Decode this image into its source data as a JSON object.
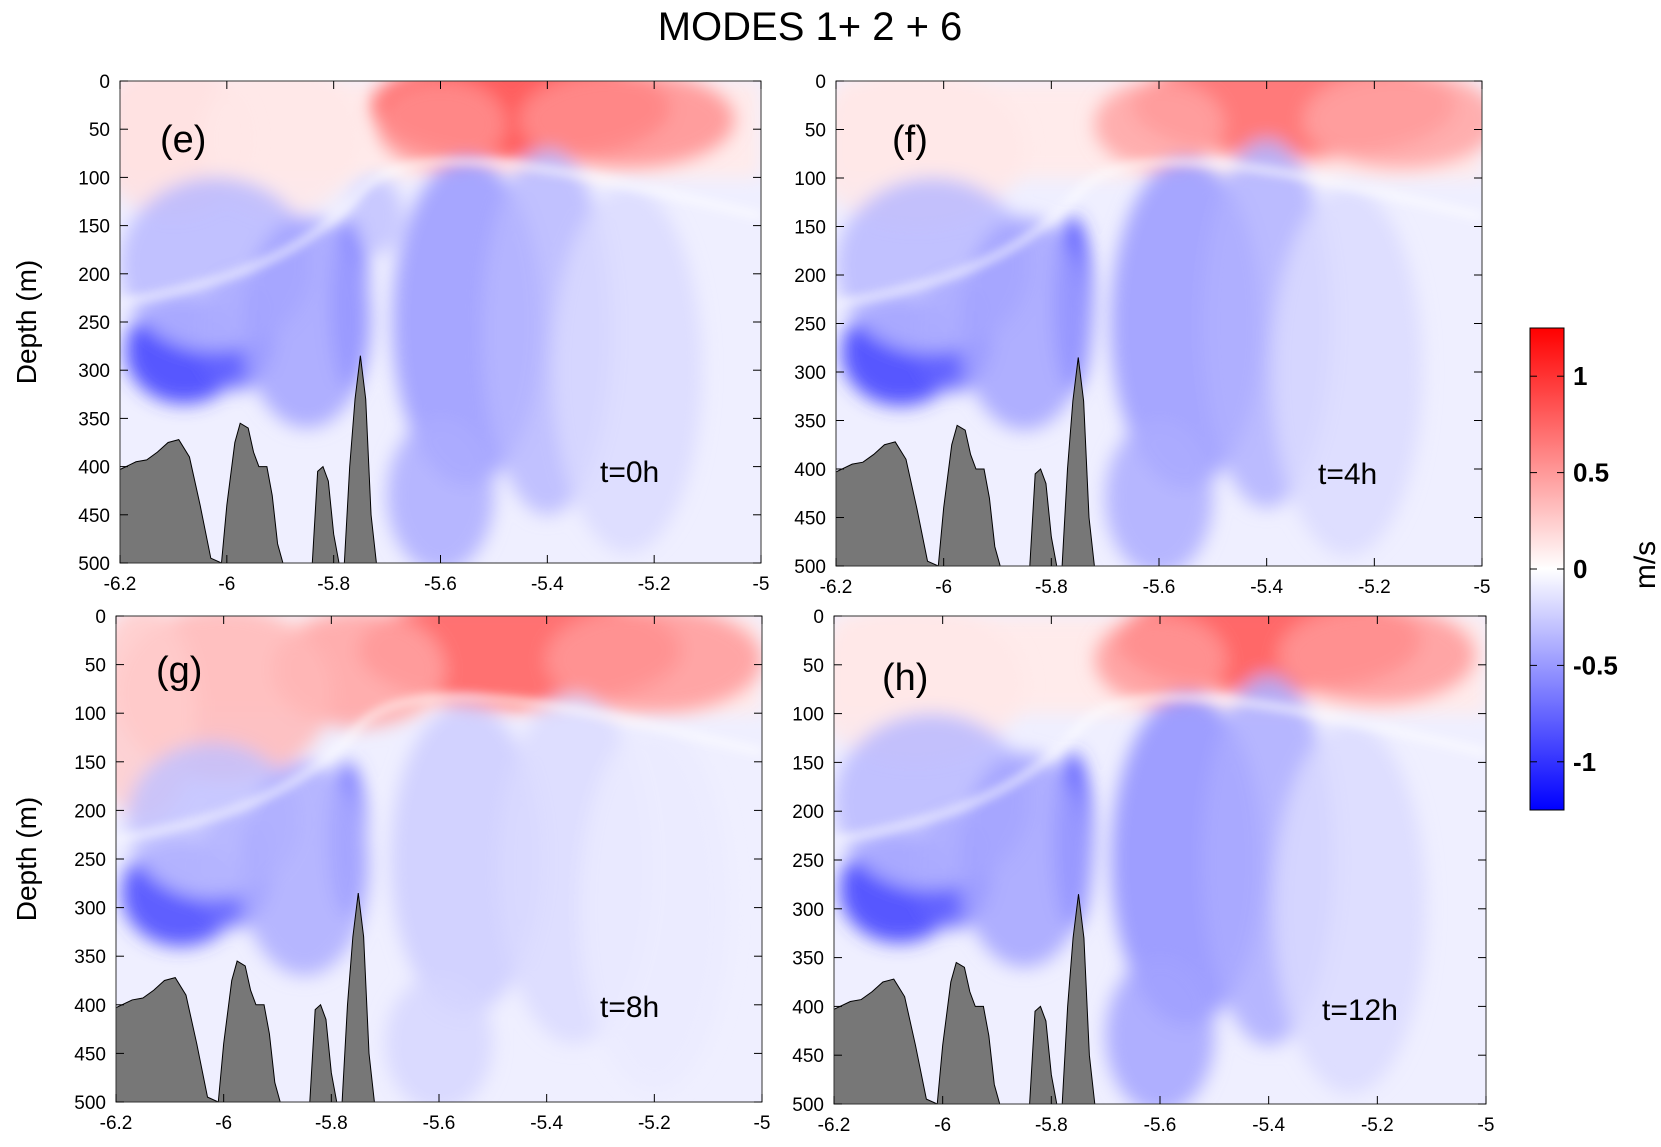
{
  "chart_data": {
    "type": "heatmap",
    "title": "MODES 1+ 2 + 6",
    "xlim": [
      -6.2,
      -5
    ],
    "ylim": [
      0,
      500
    ],
    "x_ticks": [
      "-6.2",
      "-6",
      "-5.8",
      "-5.6",
      "-5.4",
      "-5.2",
      "-5"
    ],
    "y_ticks": [
      "0",
      "50",
      "100",
      "150",
      "200",
      "250",
      "300",
      "350",
      "400",
      "450",
      "500"
    ],
    "x_tick_values": [
      -6.2,
      -6,
      -5.8,
      -5.6,
      -5.4,
      -5.2,
      -5
    ],
    "y_tick_values": [
      0,
      50,
      100,
      150,
      200,
      250,
      300,
      350,
      400,
      450,
      500
    ],
    "ylabel": "Depth (m)",
    "xlabel": "",
    "colorbar": {
      "unit": "m/s",
      "range": [
        -1.25,
        1.25
      ],
      "ticks": [
        "1",
        "0.5",
        "0",
        "-0.5",
        "-1"
      ],
      "tick_values": [
        1,
        0.5,
        0,
        -0.5,
        -1
      ],
      "colormap": [
        "#0000ff",
        "#ffffff",
        "#ff0000"
      ]
    },
    "bathymetry": {
      "x": [
        -6.2,
        -6.17,
        -6.15,
        -6.13,
        -6.11,
        -6.09,
        -6.07,
        -6.05,
        -6.03,
        -6.01,
        -6.0,
        -5.985,
        -5.975,
        -5.96,
        -5.95,
        -5.94,
        -5.925,
        -5.915,
        -5.905,
        -5.895,
        -5.89,
        -5.88,
        -5.86,
        -5.84,
        -5.83,
        -5.82,
        -5.81,
        -5.8,
        -5.79,
        -5.78,
        -5.77,
        -5.76,
        -5.75,
        -5.74,
        -5.73,
        -5.72
      ],
      "depth": [
        403,
        395,
        393,
        385,
        375,
        372,
        390,
        440,
        495,
        500,
        440,
        375,
        355,
        360,
        385,
        400,
        400,
        430,
        480,
        500,
        500,
        500,
        500,
        500,
        405,
        400,
        415,
        470,
        500,
        500,
        400,
        330,
        285,
        330,
        450,
        500
      ],
      "color": "#777777"
    },
    "panels": [
      {
        "label": "(e)",
        "time": "t=0h"
      },
      {
        "label": "(f)",
        "time": "t=4h"
      },
      {
        "label": "(g)",
        "time": "t=8h"
      },
      {
        "label": "(h)",
        "time": "t=12h"
      }
    ]
  }
}
